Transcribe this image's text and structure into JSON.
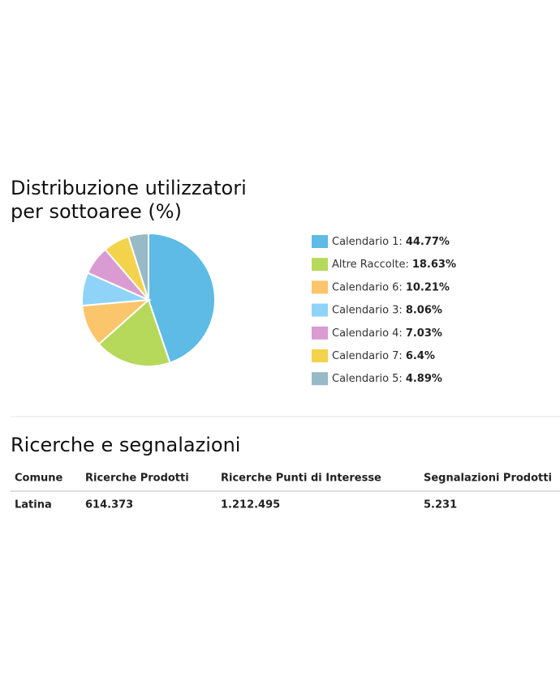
{
  "chart_data": {
    "type": "pie",
    "title": "Distribuzione utilizzatori",
    "title_line2": "per sottoaree (%)",
    "categories": [
      "Calendario 1:",
      "Altre Raccolte:",
      "Calendario 6:",
      "Calendario 3:",
      "Calendario 4:",
      "Calendario 7:",
      "Calendario 5:"
    ],
    "values": [
      44.77,
      18.63,
      10.21,
      8.06,
      7.03,
      6.4,
      4.89
    ],
    "value_labels": [
      "44.77%",
      "18.63%",
      "10.21%",
      "8.06%",
      "7.03%",
      "6.4%",
      "4.89%"
    ],
    "colors": [
      "#5dbbe6",
      "#b6d95b",
      "#fbc56c",
      "#8fd4f8",
      "#d99bd1",
      "#f3d34b",
      "#98b9c6"
    ]
  },
  "section": {
    "title": "Ricerche e segnalazioni"
  },
  "table": {
    "columns": [
      "Comune",
      "Ricerche Prodotti",
      "Ricerche Punti di Interesse",
      "Segnalazioni Prodotti"
    ],
    "rows": [
      [
        "Latina",
        "614.373",
        "1.212.495",
        "5.231"
      ]
    ]
  }
}
